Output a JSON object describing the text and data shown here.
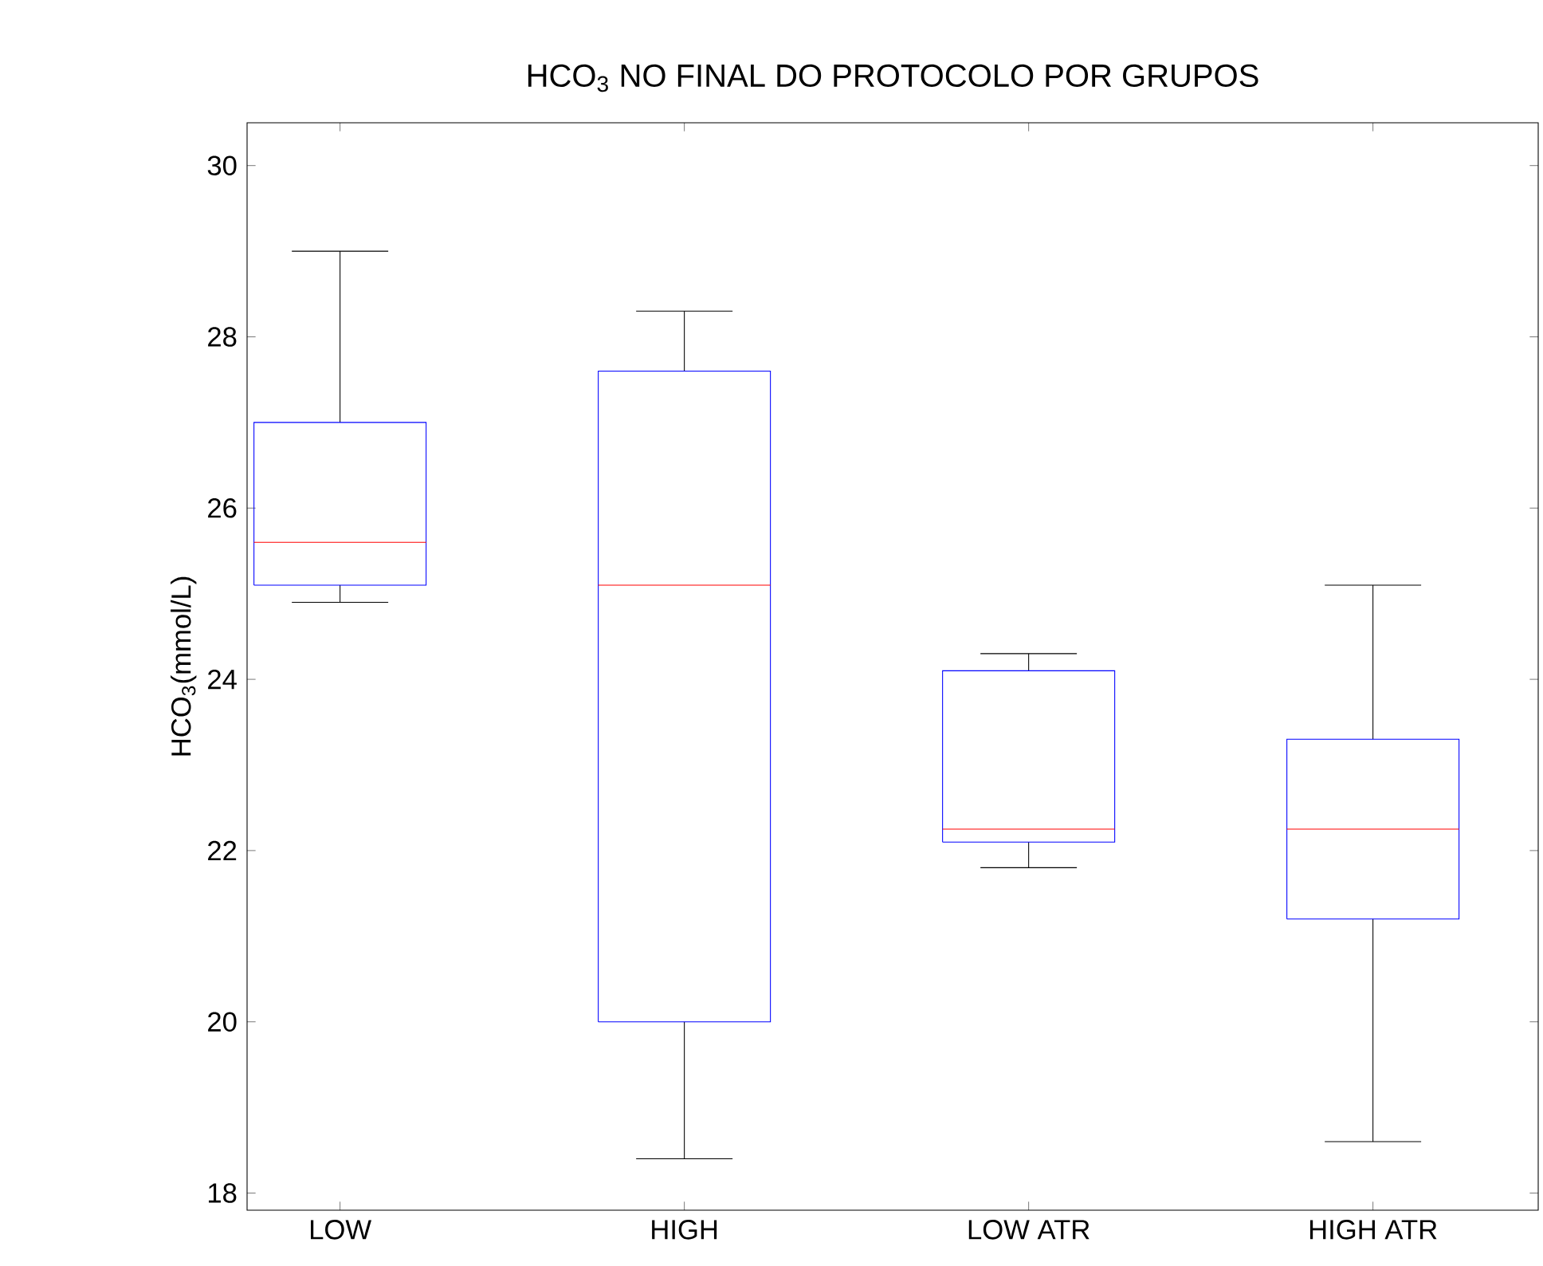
{
  "chart_data": {
    "type": "box",
    "title": "HCO$_{3}$ NO FINAL DO PROTOCOLO POR GRUPOS",
    "ylabel": "HCO$_{3}$(mmol/L)",
    "categories": [
      "LOW",
      "HIGH",
      "LOW ATR",
      "HIGH ATR"
    ],
    "series": [
      {
        "color": "#0000ff",
        "boxes": [
          {
            "low": 24.9,
            "q1": 25.1,
            "median": 25.6,
            "q3": 27.0,
            "high": 29.0
          },
          {
            "low": 18.4,
            "q1": 20.0,
            "median": 25.1,
            "q3": 27.6,
            "high": 28.3
          },
          {
            "low": 21.8,
            "q1": 22.1,
            "median": 22.25,
            "q3": 24.1,
            "high": 24.3
          },
          {
            "low": 18.6,
            "q1": 21.2,
            "median": 22.25,
            "q3": 23.3,
            "high": 25.1
          }
        ]
      }
    ],
    "ylim": [
      17.8,
      30.5
    ],
    "yticks": [
      18,
      20,
      22,
      24,
      26,
      28,
      30
    ],
    "grid": false
  }
}
